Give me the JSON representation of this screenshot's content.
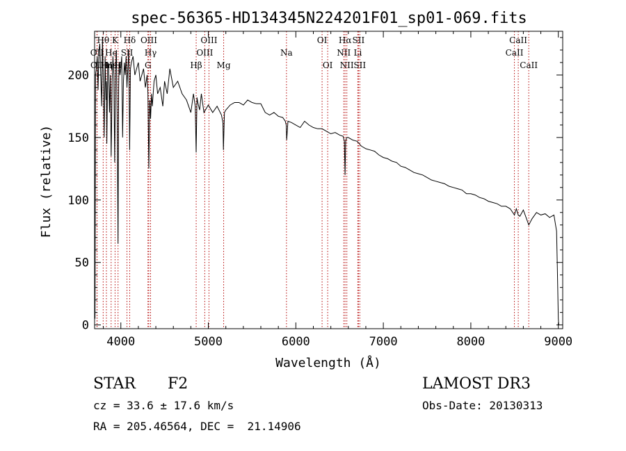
{
  "chart_data": {
    "type": "line",
    "title": "spec-56365-HD134345N224201F01_sp01-069.fits",
    "xlabel": "Wavelength (Å)",
    "ylabel": "Flux (relative)",
    "xlim": [
      3700,
      9050
    ],
    "ylim": [
      -3,
      235
    ],
    "xticks": [
      4000,
      5000,
      6000,
      7000,
      8000,
      9000
    ],
    "yticks": [
      0,
      50,
      100,
      150,
      200
    ],
    "series": [
      {
        "name": "spectrum",
        "x": [
          3700,
          3705,
          3710,
          3720,
          3730,
          3740,
          3750,
          3760,
          3770,
          3780,
          3790,
          3800,
          3810,
          3820,
          3830,
          3835,
          3840,
          3850,
          3860,
          3870,
          3880,
          3889,
          3895,
          3900,
          3910,
          3920,
          3930,
          3934,
          3940,
          3950,
          3960,
          3968,
          3975,
          3980,
          3990,
          4000,
          4010,
          4020,
          4030,
          4040,
          4050,
          4060,
          4070,
          4080,
          4090,
          4101,
          4110,
          4120,
          4140,
          4160,
          4180,
          4200,
          4220,
          4240,
          4260,
          4280,
          4300,
          4310,
          4320,
          4330,
          4340,
          4350,
          4360,
          4380,
          4400,
          4420,
          4450,
          4480,
          4500,
          4530,
          4560,
          4600,
          4650,
          4700,
          4750,
          4800,
          4830,
          4850,
          4861,
          4870,
          4880,
          4900,
          4920,
          4950,
          5000,
          5050,
          5100,
          5150,
          5167,
          5172,
          5184,
          5200,
          5250,
          5300,
          5350,
          5400,
          5450,
          5500,
          5550,
          5600,
          5650,
          5700,
          5750,
          5800,
          5850,
          5880,
          5890,
          5896,
          5910,
          5950,
          6000,
          6050,
          6100,
          6150,
          6200,
          6250,
          6300,
          6350,
          6400,
          6450,
          6500,
          6540,
          6555,
          6563,
          6570,
          6580,
          6600,
          6650,
          6700,
          6750,
          6800,
          6850,
          6900,
          6950,
          7000,
          7050,
          7100,
          7150,
          7200,
          7250,
          7300,
          7350,
          7400,
          7450,
          7500,
          7550,
          7600,
          7650,
          7700,
          7750,
          7800,
          7850,
          7900,
          7950,
          8000,
          8050,
          8100,
          8150,
          8200,
          8250,
          8300,
          8350,
          8400,
          8450,
          8498,
          8520,
          8542,
          8560,
          8600,
          8662,
          8700,
          8750,
          8800,
          8850,
          8900,
          8950,
          8980,
          8990,
          9000,
          9005
        ],
        "values": [
          40,
          5,
          200,
          205,
          215,
          188,
          220,
          225,
          200,
          175,
          230,
          195,
          150,
          215,
          180,
          195,
          145,
          210,
          205,
          170,
          200,
          135,
          160,
          195,
          215,
          200,
          130,
          160,
          205,
          220,
          150,
          65,
          190,
          210,
          200,
          205,
          215,
          150,
          195,
          210,
          200,
          215,
          190,
          205,
          220,
          140,
          205,
          210,
          215,
          200,
          205,
          210,
          195,
          200,
          205,
          190,
          200,
          185,
          125,
          180,
          165,
          185,
          175,
          195,
          200,
          185,
          190,
          175,
          195,
          185,
          205,
          190,
          195,
          185,
          180,
          170,
          185,
          175,
          138,
          182,
          178,
          172,
          185,
          170,
          176,
          170,
          175,
          168,
          162,
          140,
          170,
          172,
          176,
          178,
          178,
          176,
          180,
          178,
          177,
          177,
          170,
          168,
          170,
          167,
          166,
          163,
          160,
          148,
          163,
          162,
          160,
          158,
          163,
          160,
          158,
          157,
          157,
          155,
          153,
          154,
          152,
          151,
          147,
          120,
          147,
          150,
          150,
          148,
          147,
          143,
          141,
          140,
          139,
          136,
          134,
          133,
          131,
          130,
          127,
          126,
          124,
          122,
          121,
          120,
          118,
          116,
          115,
          114,
          113,
          111,
          110,
          109,
          108,
          105,
          105,
          104,
          102,
          101,
          99,
          98,
          97,
          95,
          95,
          93,
          88,
          93,
          88,
          87,
          92,
          80,
          85,
          90,
          88,
          89,
          86,
          88,
          75,
          40,
          5,
          0
        ]
      }
    ],
    "lines": [
      {
        "label": "Hθ",
        "x": 3798,
        "row": 0
      },
      {
        "label": "OII",
        "x": 3727,
        "row": 1
      },
      {
        "label": "OII",
        "x": 3729,
        "row": 2
      },
      {
        "label": "Hη",
        "x": 3835,
        "row": 2
      },
      {
        "label": "He",
        "x": 3889,
        "row": 1
      },
      {
        "label": "Hε",
        "x": 3889,
        "row": 2
      },
      {
        "label": "K",
        "x": 3934,
        "row": 0
      },
      {
        "label": "H",
        "x": 3968,
        "row": 2
      },
      {
        "label": "SII",
        "x": 4070,
        "row": 1
      },
      {
        "label": "Hδ",
        "x": 4101,
        "row": 0
      },
      {
        "label": "OIII",
        "x": 4320,
        "row": 0
      },
      {
        "label": "Hγ",
        "x": 4340,
        "row": 1
      },
      {
        "label": "G",
        "x": 4310,
        "row": 2
      },
      {
        "label": "Hβ",
        "x": 4861,
        "row": 2
      },
      {
        "label": "OIII",
        "x": 4959,
        "row": 1
      },
      {
        "label": "OIII",
        "x": 5007,
        "row": 0
      },
      {
        "label": "Mg",
        "x": 5175,
        "row": 2
      },
      {
        "label": "Na",
        "x": 5893,
        "row": 1
      },
      {
        "label": "OI",
        "x": 6300,
        "row": 0
      },
      {
        "label": "OI",
        "x": 6364,
        "row": 2
      },
      {
        "label": "Hα",
        "x": 6563,
        "row": 0
      },
      {
        "label": "NII",
        "x": 6548,
        "row": 1
      },
      {
        "label": "NII",
        "x": 6583,
        "row": 2
      },
      {
        "label": "SII",
        "x": 6716,
        "row": 0
      },
      {
        "label": "Li",
        "x": 6708,
        "row": 1
      },
      {
        "label": "SII",
        "x": 6731,
        "row": 2
      },
      {
        "label": "CaII",
        "x": 8542,
        "row": 0
      },
      {
        "label": "CaII",
        "x": 8498,
        "row": 1
      },
      {
        "label": "CaII",
        "x": 8662,
        "row": 2
      }
    ]
  },
  "info": {
    "object_class": "STAR",
    "subclass": "F2",
    "survey": "LAMOST DR3",
    "redshift": "cz = 33.6 ± 17.6 km/s",
    "obs_date": "Obs-Date: 20130313",
    "coords": "RA = 205.46564, DEC =  21.14906"
  }
}
